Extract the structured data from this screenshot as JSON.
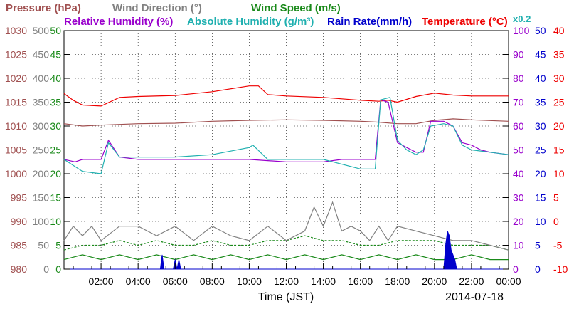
{
  "chart_data": {
    "type": "line",
    "date": "2014-07-18",
    "xlabel": "Time (JST)",
    "x_ticks": [
      "02:00",
      "04:00",
      "06:00",
      "08:00",
      "10:00",
      "12:00",
      "14:00",
      "16:00",
      "18:00",
      "20:00",
      "22:00",
      "00:00"
    ],
    "x_range_hours": [
      0,
      24
    ],
    "grid": true,
    "axes": [
      {
        "id": "pressure",
        "label": "Pressure (hPa)",
        "color": "#a05050",
        "side": "left",
        "range": [
          980,
          1030
        ],
        "ticks": [
          "980",
          "985",
          "990",
          "995",
          "1000",
          "1005",
          "1010",
          "1015",
          "1020",
          "1025",
          "1030"
        ]
      },
      {
        "id": "wind_dir",
        "label": "Wind Direction (°)",
        "color": "#808080",
        "side": "left",
        "range": [
          0,
          500
        ],
        "ticks": [
          "0",
          "50",
          "100",
          "150",
          "200",
          "250",
          "300",
          "350",
          "400",
          "450",
          "500"
        ]
      },
      {
        "id": "wind_speed",
        "label": "Wind Speed (m/s)",
        "color": "#1a8a1a",
        "side": "left",
        "range": [
          0,
          50
        ],
        "ticks": [
          "0",
          "5",
          "10",
          "15",
          "20",
          "25",
          "30",
          "35",
          "40",
          "45",
          "50"
        ]
      },
      {
        "id": "rel_hum",
        "label": "Relative Humidity (%)",
        "color": "#9900cc",
        "side": "right",
        "range": [
          0,
          100
        ],
        "ticks": [
          "0",
          "10",
          "20",
          "30",
          "40",
          "50",
          "60",
          "70",
          "80",
          "90",
          "100"
        ]
      },
      {
        "id": "abs_hum",
        "label": "Absolute Humidity (g/m³)",
        "scale_note": "x0.2",
        "color": "#20b0b0",
        "side": "right",
        "range": [
          0,
          100
        ]
      },
      {
        "id": "rain_rate",
        "label": "Rain Rate(mm/h)",
        "color": "#0000cc",
        "side": "right",
        "range": [
          0,
          50
        ],
        "ticks": [
          "0",
          "5",
          "10",
          "15",
          "20",
          "25",
          "30",
          "35",
          "40",
          "45",
          "50"
        ]
      },
      {
        "id": "temperature",
        "label": "Temperature (°C)",
        "color": "#ee0000",
        "side": "right",
        "range": [
          -10,
          40
        ],
        "ticks": [
          "-10",
          "-5",
          "0",
          "5",
          "10",
          "15",
          "20",
          "25",
          "30",
          "35",
          "40"
        ]
      }
    ],
    "series": [
      {
        "name": "Pressure (hPa)",
        "axis": "pressure",
        "x": [
          0,
          1,
          2,
          4,
          6,
          8,
          10,
          12,
          14,
          16,
          17,
          18,
          19,
          20,
          21,
          22,
          24
        ],
        "values": [
          1010.5,
          1010,
          1010.2,
          1010.5,
          1010.6,
          1011,
          1011.2,
          1011.3,
          1011.2,
          1011,
          1010.8,
          1010.5,
          1010.5,
          1011.2,
          1011.5,
          1011.3,
          1011
        ]
      },
      {
        "name": "Temperature (°C)",
        "axis": "temperature",
        "x": [
          0,
          0.5,
          1,
          2,
          3,
          4,
          6,
          8,
          10,
          10.5,
          11,
          12,
          14,
          16,
          17,
          17.5,
          18,
          19,
          20,
          21,
          22,
          24
        ],
        "values": [
          26.8,
          25.4,
          24.4,
          24.2,
          26.0,
          26.2,
          26.4,
          27.2,
          28.4,
          28.4,
          26.6,
          26.3,
          26.0,
          25.4,
          25.2,
          25.4,
          25.0,
          26.2,
          26.9,
          26.5,
          26.3,
          26.3
        ]
      },
      {
        "name": "Relative Humidity (%)",
        "axis": "rel_hum",
        "x": [
          0,
          0.6,
          1,
          2,
          2.4,
          3,
          4,
          6,
          8,
          10,
          12,
          13,
          14,
          15,
          16,
          16.8,
          17.1,
          17.5,
          18,
          18.5,
          19,
          19.4,
          19.8,
          20.5,
          21,
          21.5,
          22,
          22.5,
          23,
          24
        ],
        "values": [
          46,
          45,
          46,
          46,
          54,
          47,
          46,
          46,
          46,
          46,
          45,
          45,
          45,
          46,
          46,
          46,
          71,
          70,
          53,
          51,
          49,
          49,
          62,
          62,
          60,
          53,
          52,
          50,
          49,
          48
        ]
      },
      {
        "name": "Absolute Humidity (g/m³)",
        "axis": "abs_hum",
        "x": [
          0,
          1,
          2,
          2.4,
          3,
          4,
          6,
          8,
          10,
          10.2,
          11,
          12,
          14,
          15,
          16,
          16.8,
          17.1,
          17.6,
          18,
          18.5,
          19,
          19.4,
          19.8,
          20.5,
          21,
          21.5,
          22,
          23,
          24
        ],
        "values": [
          46,
          41,
          40,
          53,
          47,
          47,
          47,
          48,
          51,
          52,
          46,
          46,
          46,
          44,
          42,
          42,
          71,
          72,
          54,
          50,
          48,
          50,
          60,
          61,
          60,
          52,
          50,
          49,
          48
        ]
      },
      {
        "name": "Wind Speed (m/s)",
        "axis": "wind_speed",
        "x": [
          0,
          1,
          2,
          3,
          4,
          5,
          6,
          7,
          8,
          9,
          10,
          11,
          12,
          13,
          14,
          15,
          16,
          17,
          18,
          19,
          20,
          21,
          22,
          23,
          24
        ],
        "values": [
          2,
          3,
          2,
          3,
          2,
          3,
          2,
          3,
          2,
          3,
          2,
          3,
          2,
          3,
          2,
          3,
          2,
          3,
          2,
          3,
          2,
          2,
          3,
          2,
          2
        ]
      },
      {
        "name": "Wind Speed (m/s)",
        "axis": "wind_speed",
        "x": [
          0,
          1,
          2,
          3,
          4,
          5,
          6,
          7,
          8,
          9,
          10,
          11,
          12,
          13,
          14,
          15,
          16,
          17,
          18,
          19,
          20,
          21,
          22,
          23,
          24
        ],
        "values": [
          4,
          5,
          5,
          6,
          5,
          6,
          5,
          5,
          6,
          5,
          5,
          6,
          6,
          7,
          6,
          6,
          5,
          5,
          6,
          6,
          6,
          5,
          5,
          5,
          4
        ]
      },
      {
        "name": "Wind Direction (°)",
        "axis": "wind_dir",
        "x": [
          0,
          0.5,
          1,
          1.5,
          2,
          3,
          4,
          5,
          6,
          7,
          8,
          9,
          10,
          11,
          12,
          13,
          13.5,
          14,
          14.5,
          15,
          15.5,
          16,
          16.5,
          17,
          17.5,
          18,
          19,
          20,
          21,
          22,
          23,
          24
        ],
        "values": [
          60,
          90,
          70,
          90,
          60,
          90,
          90,
          70,
          90,
          60,
          90,
          70,
          60,
          90,
          60,
          80,
          130,
          90,
          140,
          80,
          90,
          80,
          60,
          90,
          60,
          90,
          80,
          70,
          60,
          60,
          50,
          40
        ]
      },
      {
        "name": "Rain Rate(mm/h)",
        "axis": "rain_rate",
        "x": [
          0,
          5.2,
          5.3,
          5.4,
          5.5,
          5.9,
          6.0,
          6.1,
          6.2,
          6.3,
          6.4,
          20.5,
          20.6,
          20.7,
          20.8,
          20.9,
          21.0,
          21.1,
          21.2,
          24
        ],
        "values": [
          0,
          0,
          3,
          0,
          0,
          0,
          2,
          0,
          2,
          0,
          0,
          0,
          5,
          8,
          7,
          4,
          3,
          2,
          0,
          0
        ]
      }
    ]
  }
}
